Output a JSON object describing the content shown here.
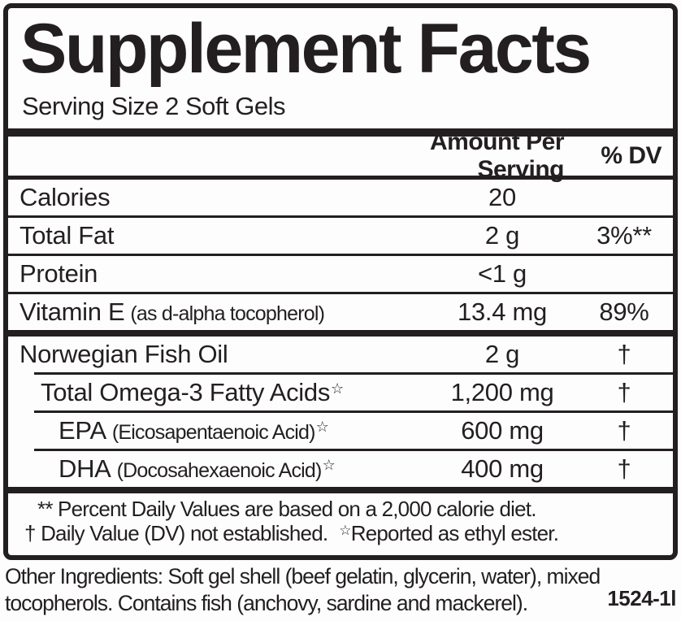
{
  "title": "Supplement Facts",
  "serving_size": "Serving Size 2 Soft Gels",
  "header": {
    "amount": "Amount Per Serving",
    "dv": "% DV"
  },
  "rows": [
    {
      "name": "Calories",
      "note": "",
      "star": "",
      "amount": "20",
      "dv": ""
    },
    {
      "name": "Total Fat",
      "note": "",
      "star": "",
      "amount": "2 g",
      "dv": "3%**"
    },
    {
      "name": "Protein",
      "note": "",
      "star": "",
      "amount": "<1 g",
      "dv": ""
    },
    {
      "name": "Vitamin E",
      "note": "(as d-alpha tocopherol)",
      "star": "",
      "amount": "13.4 mg",
      "dv": "89%"
    },
    {
      "name": "Norwegian Fish Oil",
      "note": "",
      "star": "",
      "amount": "2 g",
      "dv": "†"
    },
    {
      "name": "Total Omega-3 Fatty Acids",
      "note": "",
      "star": "☆",
      "amount": "1,200 mg",
      "dv": "†"
    },
    {
      "name": "EPA",
      "note": "(Eicosapentaenoic Acid)",
      "star": "☆",
      "amount": "600 mg",
      "dv": "†"
    },
    {
      "name": "DHA",
      "note": "(Docosahexaenoic Acid)",
      "star": "☆",
      "amount": "400 mg",
      "dv": "†"
    }
  ],
  "footnotes": {
    "line1": "** Percent Daily Values are based on a 2,000 calorie diet.",
    "line2_pre": "† Daily Value (DV) not established.",
    "line2_star": "☆",
    "line2_post": "Reported as ethyl ester."
  },
  "other_ingredients": {
    "text": "Other Ingredients: Soft gel shell (beef gelatin, glycerin, water), mixed tocopherols. Contains fish (anchovy, sardine and mackerel)."
  },
  "product_code": "1524-1l",
  "colors": {
    "ink": "#231f20",
    "background": "#fdfdfd"
  }
}
